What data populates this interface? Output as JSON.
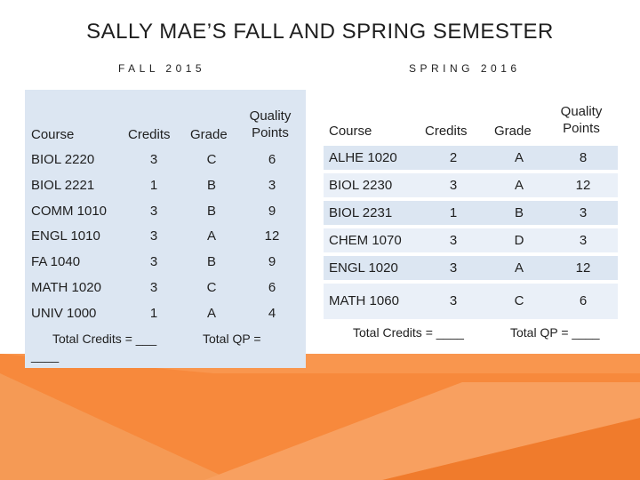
{
  "slide": {
    "title": "SALLY MAE’S FALL AND SPRING SEMESTER",
    "fall_label": "FALL 2015",
    "spring_label": "SPRING 2016",
    "accent_color": "#f7893c",
    "accent_color_light": "#f9a86a",
    "table_fill": "#dce6f2"
  },
  "fall": {
    "headers": {
      "course": "Course",
      "credits": "Credits",
      "grade": "Grade",
      "quality_1": "Quality",
      "quality_2": "Points"
    },
    "rows": [
      {
        "course": "BIOL 2220",
        "credits": "3",
        "grade": "C",
        "qp": "6"
      },
      {
        "course": "BIOL 2221",
        "credits": "1",
        "grade": "B",
        "qp": "3"
      },
      {
        "course": "COMM 1010",
        "credits": "3",
        "grade": "B",
        "qp": "9"
      },
      {
        "course": "ENGL 1010",
        "credits": "3",
        "grade": "A",
        "qp": "12"
      },
      {
        "course": "FA 1040",
        "credits": "3",
        "grade": "B",
        "qp": "9"
      },
      {
        "course": "MATH 1020",
        "credits": "3",
        "grade": "C",
        "qp": "6"
      },
      {
        "course": "UNIV 1000",
        "credits": "1",
        "grade": "A",
        "qp": "4"
      }
    ],
    "total_credits": "Total Credits  = ___",
    "total_credits_cont": "____",
    "total_qp": "Total QP ="
  },
  "spring": {
    "headers": {
      "course": "Course",
      "credits": "Credits",
      "grade": "Grade",
      "quality_1": "Quality",
      "quality_2": "Points"
    },
    "rows": [
      {
        "course": "ALHE 1020",
        "credits": "2",
        "grade": "A",
        "qp": "8"
      },
      {
        "course": "BIOL 2230",
        "credits": "3",
        "grade": "A",
        "qp": "12"
      },
      {
        "course": "BIOL 2231",
        "credits": "1",
        "grade": "B",
        "qp": "3"
      },
      {
        "course": "CHEM 1070",
        "credits": "3",
        "grade": "D",
        "qp": "3"
      },
      {
        "course": "ENGL 1020",
        "credits": "3",
        "grade": "A",
        "qp": "12"
      },
      {
        "course": "MATH 1060",
        "credits": "3",
        "grade": "C",
        "qp": "6"
      }
    ],
    "total_credits": "Total Credits = ____",
    "total_qp": "Total QP = ____"
  }
}
